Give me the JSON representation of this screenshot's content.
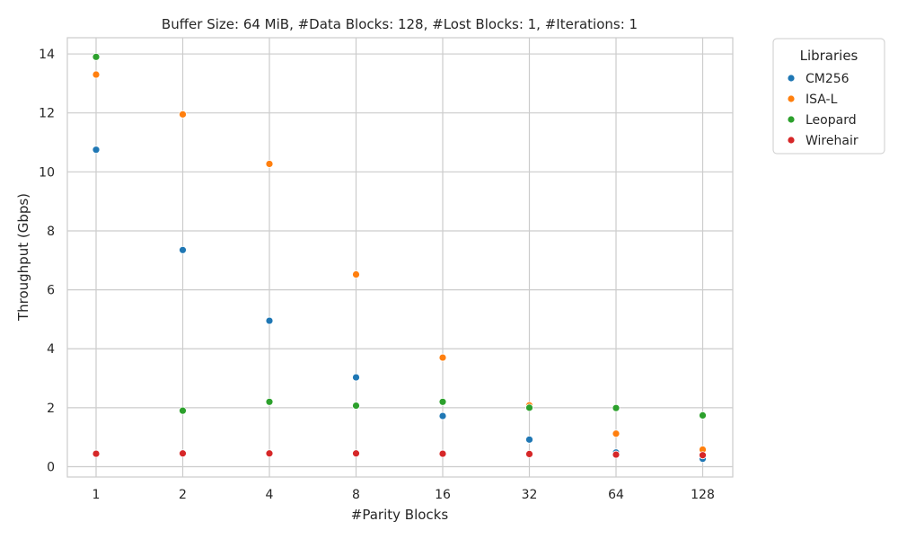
{
  "chart_data": {
    "type": "scatter",
    "title": "Buffer Size: 64 MiB, #Data Blocks: 128, #Lost Blocks: 1, #Iterations: 1",
    "xlabel": "#Parity Blocks",
    "ylabel": "Throughput (Gbps)",
    "x_scale": "categorical",
    "categories": [
      "1",
      "2",
      "4",
      "8",
      "16",
      "32",
      "64",
      "128"
    ],
    "y_ticks": [
      "0",
      "2",
      "4",
      "6",
      "8",
      "10",
      "12",
      "14"
    ],
    "ylim": [
      -0.35,
      14.55
    ],
    "grid": true,
    "legend": {
      "title": "Libraries",
      "placement": "outside-top-right"
    },
    "series": [
      {
        "name": "CM256",
        "color": "#1f77b4",
        "values": [
          10.75,
          7.35,
          4.95,
          3.03,
          1.72,
          0.92,
          0.48,
          0.27
        ]
      },
      {
        "name": "ISA-L",
        "color": "#ff7f0e",
        "values": [
          13.3,
          11.95,
          10.27,
          6.52,
          3.7,
          2.08,
          1.12,
          0.58
        ]
      },
      {
        "name": "Leopard",
        "color": "#2ca02c",
        "values": [
          13.9,
          1.9,
          2.2,
          2.07,
          2.2,
          2.0,
          1.99,
          1.74
        ]
      },
      {
        "name": "Wirehair",
        "color": "#d62728",
        "values": [
          0.44,
          0.45,
          0.45,
          0.45,
          0.44,
          0.43,
          0.41,
          0.39
        ]
      }
    ]
  }
}
